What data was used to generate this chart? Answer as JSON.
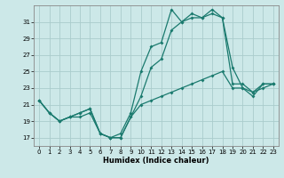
{
  "xlabel": "Humidex (Indice chaleur)",
  "bg_color": "#cce8e8",
  "grid_color": "#aacccc",
  "line_color": "#1a7a6e",
  "xlim": [
    -0.5,
    23.5
  ],
  "ylim": [
    16.0,
    33.0
  ],
  "yticks": [
    17,
    19,
    21,
    23,
    25,
    27,
    29,
    31
  ],
  "xticks": [
    0,
    1,
    2,
    3,
    4,
    5,
    6,
    7,
    8,
    9,
    10,
    11,
    12,
    13,
    14,
    15,
    16,
    17,
    18,
    19,
    20,
    21,
    22,
    23
  ],
  "series1_x": [
    0,
    1,
    2,
    3,
    4,
    5,
    6,
    7,
    8,
    9,
    10,
    11,
    12,
    13,
    14,
    15,
    16,
    17,
    18,
    19,
    20,
    21,
    22,
    23
  ],
  "series1_y": [
    21.5,
    20.0,
    19.0,
    19.5,
    19.5,
    20.0,
    17.5,
    17.0,
    17.0,
    19.5,
    21.0,
    21.5,
    22.0,
    22.5,
    23.0,
    23.5,
    24.0,
    24.5,
    25.0,
    23.0,
    23.0,
    22.5,
    23.5,
    23.5
  ],
  "series2_x": [
    0,
    1,
    2,
    3,
    4,
    5,
    6,
    7,
    8,
    9,
    10,
    11,
    12,
    13,
    14,
    15,
    16,
    17,
    18,
    19,
    20,
    21,
    22,
    23
  ],
  "series2_y": [
    21.5,
    20.0,
    19.0,
    19.5,
    20.0,
    20.5,
    17.5,
    17.0,
    17.5,
    20.0,
    25.0,
    28.0,
    28.5,
    32.5,
    31.0,
    31.5,
    31.5,
    32.5,
    31.5,
    23.5,
    23.5,
    22.5,
    23.0,
    23.5
  ],
  "series3_x": [
    0,
    1,
    2,
    3,
    4,
    5,
    6,
    7,
    8,
    9,
    10,
    11,
    12,
    13,
    14,
    15,
    16,
    17,
    18,
    19,
    20,
    21,
    22,
    23
  ],
  "series3_y": [
    21.5,
    20.0,
    19.0,
    19.5,
    20.0,
    20.5,
    17.5,
    17.0,
    17.0,
    19.5,
    22.0,
    25.5,
    26.5,
    30.0,
    31.0,
    32.0,
    31.5,
    32.0,
    31.5,
    25.5,
    23.0,
    22.0,
    23.5,
    23.5
  ]
}
